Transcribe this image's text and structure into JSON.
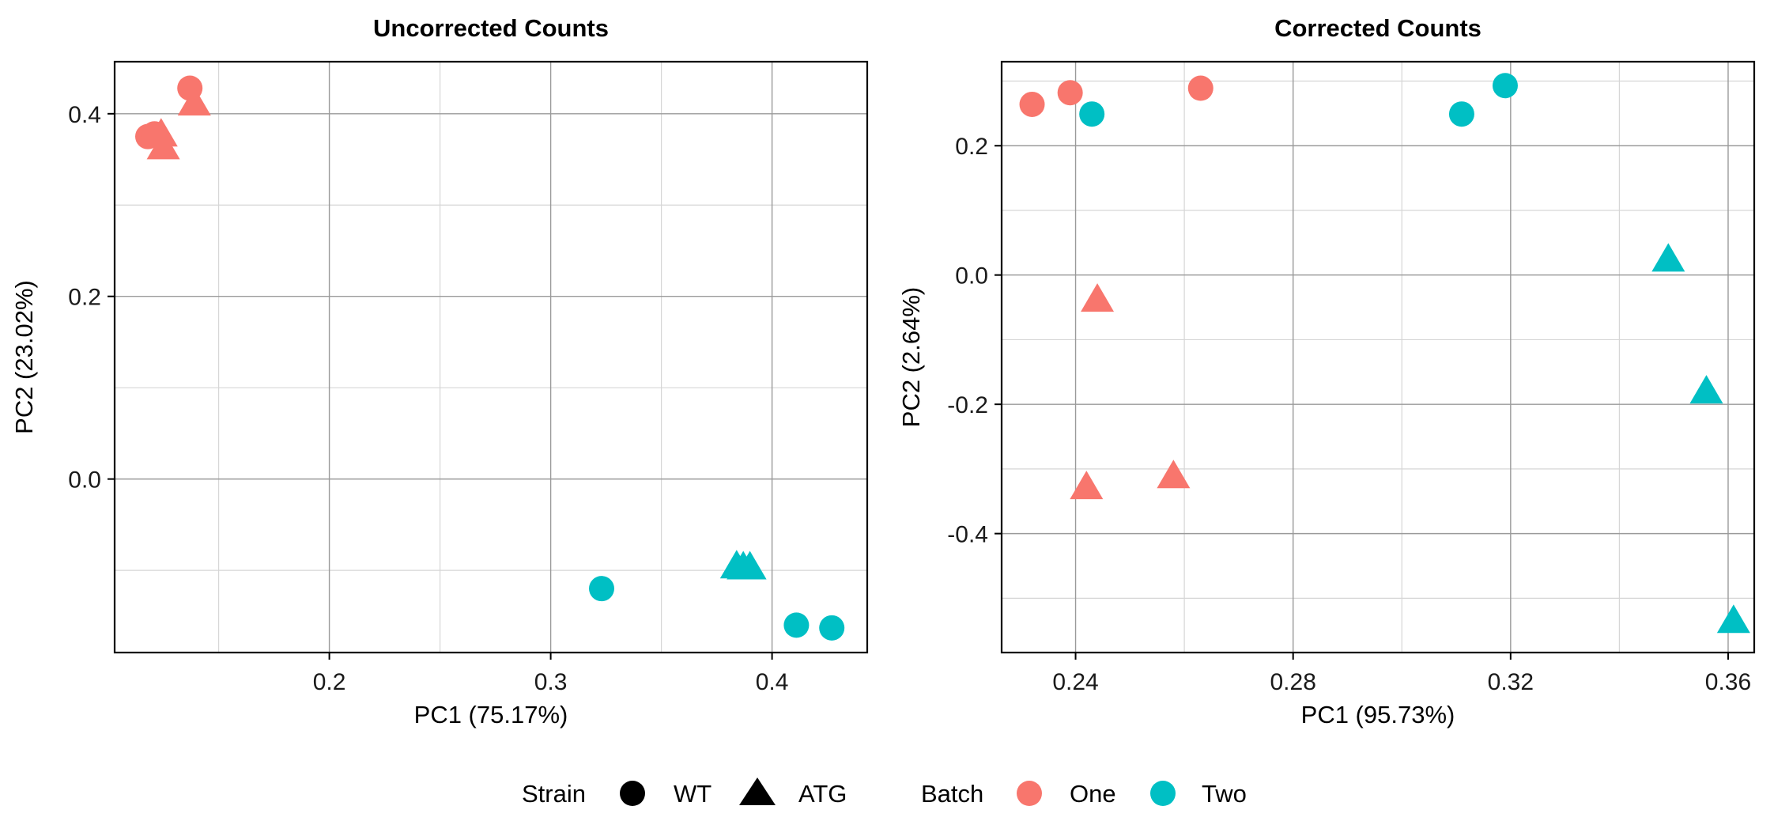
{
  "colors": {
    "One": "#F8766D",
    "Two": "#00BFC4",
    "grid_major": "#9a9a9a",
    "grid_minor": "#d6d6d6",
    "border": "#000000"
  },
  "chart_data": [
    {
      "type": "scatter",
      "title": "Uncorrected Counts",
      "xlabel": "PC1 (75.17%)",
      "ylabel": "PC2 (23.02%)",
      "xlim": [
        0.103,
        0.443
      ],
      "ylim": [
        -0.19,
        0.457
      ],
      "xticks": [
        0.2,
        0.3,
        0.4
      ],
      "xtick_labels": [
        "0.2",
        "0.3",
        "0.4"
      ],
      "yticks": [
        0.0,
        0.2,
        0.4
      ],
      "ytick_labels": [
        "0.0",
        "0.2",
        "0.4"
      ],
      "xminor": [
        0.15,
        0.25,
        0.35
      ],
      "yminor": [
        -0.1,
        0.1,
        0.3
      ],
      "grid": true,
      "points": [
        {
          "x": 0.118,
          "y": 0.375,
          "strain": "WT",
          "batch": "One"
        },
        {
          "x": 0.121,
          "y": 0.378,
          "strain": "WT",
          "batch": "One"
        },
        {
          "x": 0.137,
          "y": 0.428,
          "strain": "WT",
          "batch": "One"
        },
        {
          "x": 0.124,
          "y": 0.376,
          "strain": "ATG",
          "batch": "One"
        },
        {
          "x": 0.125,
          "y": 0.362,
          "strain": "ATG",
          "batch": "One"
        },
        {
          "x": 0.139,
          "y": 0.41,
          "strain": "ATG",
          "batch": "One"
        },
        {
          "x": 0.323,
          "y": -0.12,
          "strain": "WT",
          "batch": "Two"
        },
        {
          "x": 0.411,
          "y": -0.16,
          "strain": "WT",
          "batch": "Two"
        },
        {
          "x": 0.427,
          "y": -0.163,
          "strain": "WT",
          "batch": "Two"
        },
        {
          "x": 0.384,
          "y": -0.097,
          "strain": "ATG",
          "batch": "Two"
        },
        {
          "x": 0.387,
          "y": -0.098,
          "strain": "ATG",
          "batch": "Two"
        },
        {
          "x": 0.39,
          "y": -0.098,
          "strain": "ATG",
          "batch": "Two"
        }
      ]
    },
    {
      "type": "scatter",
      "title": "Corrected Counts",
      "xlabel": "PC1 (95.73%)",
      "ylabel": "PC2 (2.64%)",
      "xlim": [
        0.2264,
        0.3648
      ],
      "ylim": [
        -0.584,
        0.33
      ],
      "xticks": [
        0.24,
        0.28,
        0.32,
        0.36
      ],
      "xtick_labels": [
        "0.24",
        "0.28",
        "0.32",
        "0.36"
      ],
      "yticks": [
        -0.4,
        -0.2,
        0.0,
        0.2
      ],
      "ytick_labels": [
        "-0.4",
        "-0.2",
        "0.0",
        "0.2"
      ],
      "xminor": [
        0.26,
        0.3,
        0.34
      ],
      "yminor": [
        -0.5,
        -0.3,
        -0.1,
        0.1,
        0.3
      ],
      "grid": true,
      "points": [
        {
          "x": 0.232,
          "y": 0.264,
          "strain": "WT",
          "batch": "One"
        },
        {
          "x": 0.239,
          "y": 0.282,
          "strain": "WT",
          "batch": "One"
        },
        {
          "x": 0.263,
          "y": 0.289,
          "strain": "WT",
          "batch": "One"
        },
        {
          "x": 0.243,
          "y": 0.249,
          "strain": "WT",
          "batch": "Two"
        },
        {
          "x": 0.311,
          "y": 0.249,
          "strain": "WT",
          "batch": "Two"
        },
        {
          "x": 0.319,
          "y": 0.293,
          "strain": "WT",
          "batch": "Two"
        },
        {
          "x": 0.244,
          "y": -0.04,
          "strain": "ATG",
          "batch": "One"
        },
        {
          "x": 0.242,
          "y": -0.33,
          "strain": "ATG",
          "batch": "One"
        },
        {
          "x": 0.258,
          "y": -0.313,
          "strain": "ATG",
          "batch": "One"
        },
        {
          "x": 0.349,
          "y": 0.022,
          "strain": "ATG",
          "batch": "Two"
        },
        {
          "x": 0.356,
          "y": -0.182,
          "strain": "ATG",
          "batch": "Two"
        },
        {
          "x": 0.361,
          "y": -0.537,
          "strain": "ATG",
          "batch": "Two"
        }
      ]
    }
  ],
  "legend": {
    "strain_title": "Strain",
    "strain_items": [
      {
        "label": "WT",
        "shape": "circle"
      },
      {
        "label": "ATG",
        "shape": "triangle"
      }
    ],
    "batch_title": "Batch",
    "batch_items": [
      {
        "label": "One",
        "color": "#F8766D"
      },
      {
        "label": "Two",
        "color": "#00BFC4"
      }
    ],
    "placement": "bottom"
  }
}
